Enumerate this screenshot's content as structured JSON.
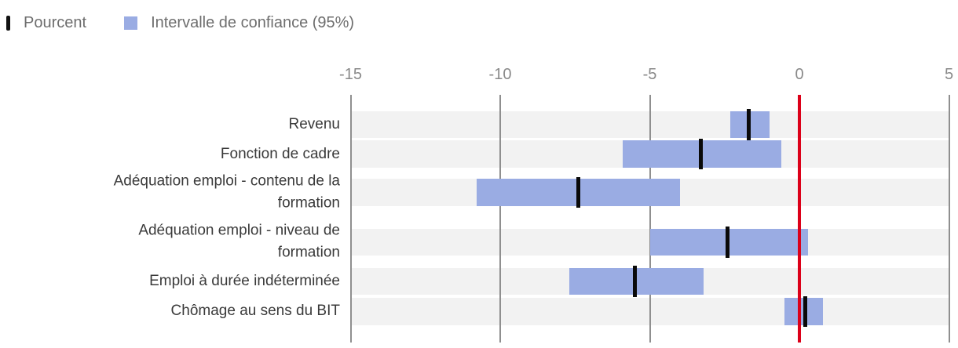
{
  "legend": {
    "items": [
      {
        "label": "Pourcent",
        "icon": "tick-bar",
        "color": "#111111"
      },
      {
        "label": "Intervalle de confiance (95%)",
        "icon": "square",
        "color": "#9aace3"
      }
    ]
  },
  "chart_data": {
    "type": "bar",
    "subtype": "horizontal-range-plot-with-point-estimate",
    "title": "",
    "xlabel": "",
    "ylabel": "",
    "xlim": [
      -15,
      5
    ],
    "x_ticks": [
      -15,
      -10,
      -5,
      0,
      5
    ],
    "grid": true,
    "zero_line": 0,
    "legend_position": "top-left",
    "categories": [
      "Revenu",
      "Fonction de cadre",
      "Adéquation emploi - contenu de la formation",
      "Adéquation emploi - niveau de formation",
      "Emploi à durée indéterminée",
      "Chômage au sens du BIT"
    ],
    "rows": [
      {
        "label_lines": [
          "Revenu"
        ],
        "point": -1.7,
        "ci_low": -2.3,
        "ci_high": -1.0
      },
      {
        "label_lines": [
          "Fonction de cadre"
        ],
        "point": -3.3,
        "ci_low": -5.9,
        "ci_high": -0.6
      },
      {
        "label_lines": [
          "Adéquation emploi - contenu de la",
          "formation"
        ],
        "point": -7.4,
        "ci_low": -10.8,
        "ci_high": -4.0
      },
      {
        "label_lines": [
          "Adéquation emploi - niveau de",
          "formation"
        ],
        "point": -2.4,
        "ci_low": -5.0,
        "ci_high": 0.3
      },
      {
        "label_lines": [
          "Emploi à durée indéterminée"
        ],
        "point": -5.5,
        "ci_low": -7.7,
        "ci_high": -3.2
      },
      {
        "label_lines": [
          "Chômage au sens du BIT"
        ],
        "point": 0.2,
        "ci_low": -0.5,
        "ci_high": 0.8
      }
    ],
    "series": [
      {
        "name": "Pourcent",
        "values": [
          -1.7,
          -3.3,
          -7.4,
          -2.4,
          -5.5,
          0.2
        ]
      },
      {
        "name": "Intervalle de confiance (95%) borne basse",
        "values": [
          -2.3,
          -5.9,
          -10.8,
          -5.0,
          -7.7,
          -0.5
        ]
      },
      {
        "name": "Intervalle de confiance (95%) borne haute",
        "values": [
          -1.0,
          -0.6,
          -4.0,
          0.3,
          -3.2,
          0.8
        ]
      }
    ]
  },
  "colors": {
    "bar": "#9aace3",
    "point": "#0a0a0a",
    "zero_line": "#dc0019",
    "gridline": "#8f8f8f",
    "row_stripe": "#f2f2f2",
    "axis_text": "#8a8a8a",
    "category_text": "#3a3a3a",
    "legend_text": "#6e6e6e"
  }
}
